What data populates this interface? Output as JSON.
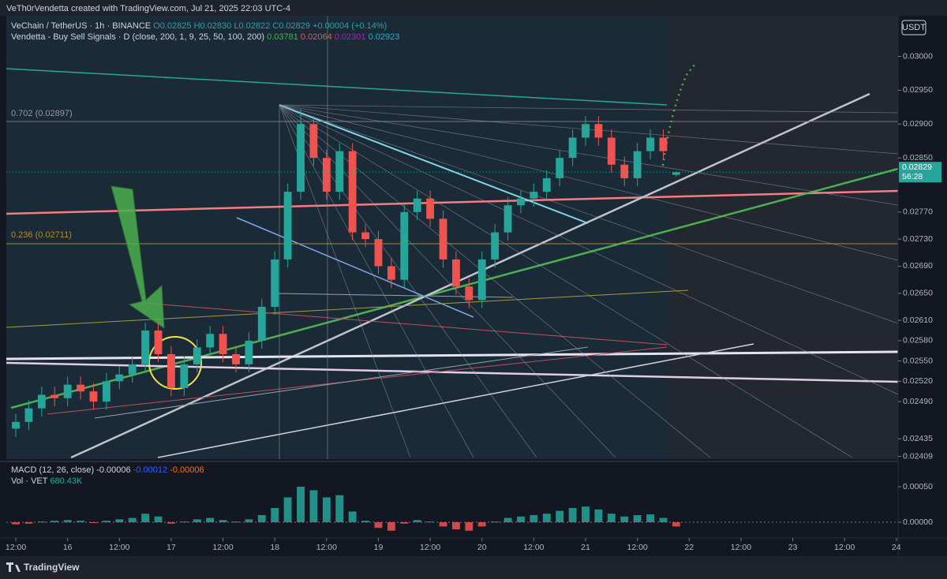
{
  "header": {
    "title": "VeTh0rVendetta created with TradingView.com, Jul 21, 2025 22:03 UTC-4"
  },
  "legend": {
    "symbol": "VeChain / TetherUS · 1h · BINANCE",
    "open": "O0.02825",
    "high": "H0.02830",
    "low": "L0.02822",
    "close": "C0.02829",
    "change": "+0.00004 (+0.14%)",
    "indicator": "Vendetta - Buy Sell Signals · D (close, 200, 1, 9, 25, 50, 100, 200)",
    "indicator_values": [
      "0.03781",
      "0.02064",
      "0.02301",
      "0.02923"
    ],
    "currency": "USDT",
    "fib_high": "0.702 (0.02897)",
    "fib_low": "0.236 (0.02711)",
    "price_tag": "0.02829",
    "countdown": "56:28",
    "macd": "MACD (12, 26, close)",
    "macd_values": [
      "-0.00006",
      "-0.00012",
      "-0.00006"
    ],
    "volume": "Vol · VET",
    "volume_value": "680.43K"
  },
  "footer": {
    "brand": "TradingView"
  },
  "chart_data": [
    {
      "type": "candlestick",
      "up_color": "#26a69a",
      "down_color": "#ef5350",
      "x": [
        0,
        3,
        6,
        9,
        12,
        15,
        18,
        21,
        24,
        27,
        30,
        33,
        36,
        39,
        42,
        45,
        48,
        51,
        54,
        57,
        60,
        63,
        66,
        69,
        72,
        75,
        78,
        81,
        84,
        87,
        90,
        93,
        96,
        99,
        102,
        105,
        108,
        111,
        114,
        117,
        120,
        123,
        126,
        129,
        132,
        135,
        138,
        141,
        144,
        147,
        150,
        153
      ],
      "open": [
        0.0245,
        0.0246,
        0.0248,
        0.025,
        0.02495,
        0.02515,
        0.02505,
        0.0249,
        0.0252,
        0.0253,
        0.02545,
        0.02595,
        0.0256,
        0.0251,
        0.02545,
        0.0257,
        0.0259,
        0.0256,
        0.02545,
        0.0258,
        0.0263,
        0.027,
        0.028,
        0.029,
        0.0285,
        0.028,
        0.0286,
        0.0274,
        0.0273,
        0.0269,
        0.0267,
        0.0277,
        0.0279,
        0.0276,
        0.027,
        0.0266,
        0.0264,
        0.027,
        0.0274,
        0.0278,
        0.0279,
        0.028,
        0.0282,
        0.0285,
        0.0288,
        0.029,
        0.0288,
        0.0284,
        0.0282,
        0.0286,
        0.0288,
        0.02825
      ],
      "high": [
        0.02472,
        0.02492,
        0.02512,
        0.02512,
        0.02527,
        0.02527,
        0.02517,
        0.02532,
        0.02542,
        0.02557,
        0.02607,
        0.02607,
        0.02572,
        0.02557,
        0.02582,
        0.02602,
        0.02602,
        0.02572,
        0.02592,
        0.02642,
        0.02712,
        0.02812,
        0.02922,
        0.02912,
        0.02862,
        0.02872,
        0.02872,
        0.02752,
        0.02742,
        0.02702,
        0.02782,
        0.02802,
        0.02802,
        0.02772,
        0.02712,
        0.02672,
        0.02712,
        0.02752,
        0.02792,
        0.02802,
        0.02812,
        0.02832,
        0.02862,
        0.02892,
        0.02912,
        0.02912,
        0.02892,
        0.02852,
        0.02872,
        0.02892,
        0.02892,
        0.0283
      ],
      "low": [
        0.02438,
        0.02448,
        0.02468,
        0.02483,
        0.02483,
        0.02493,
        0.02478,
        0.02478,
        0.02508,
        0.02518,
        0.02533,
        0.02548,
        0.02498,
        0.02498,
        0.02533,
        0.02558,
        0.02548,
        0.02533,
        0.02533,
        0.02568,
        0.02618,
        0.02688,
        0.02788,
        0.02838,
        0.02788,
        0.02788,
        0.02728,
        0.02718,
        0.02678,
        0.02658,
        0.02658,
        0.02758,
        0.02748,
        0.02688,
        0.02648,
        0.02628,
        0.02628,
        0.02688,
        0.02728,
        0.02768,
        0.02778,
        0.02788,
        0.02808,
        0.02838,
        0.02868,
        0.02868,
        0.02828,
        0.02808,
        0.02808,
        0.02848,
        0.02848,
        0.02822
      ],
      "close": [
        0.0246,
        0.0248,
        0.025,
        0.02495,
        0.02515,
        0.02505,
        0.0249,
        0.0252,
        0.0253,
        0.02545,
        0.02595,
        0.0256,
        0.0251,
        0.02545,
        0.0257,
        0.0259,
        0.0256,
        0.02545,
        0.0258,
        0.0263,
        0.027,
        0.028,
        0.029,
        0.0285,
        0.028,
        0.0286,
        0.0274,
        0.0273,
        0.0269,
        0.0267,
        0.0277,
        0.0279,
        0.0276,
        0.027,
        0.0266,
        0.0264,
        0.027,
        0.0274,
        0.0278,
        0.0279,
        0.028,
        0.0282,
        0.0285,
        0.0288,
        0.029,
        0.0288,
        0.0284,
        0.0282,
        0.0286,
        0.0288,
        0.0286,
        0.02829
      ],
      "xlim": [
        -2.2,
        204.4
      ],
      "xticks": [
        {
          "value": 0,
          "label": "12:00"
        },
        {
          "value": 12,
          "label": "16"
        },
        {
          "value": 24,
          "label": "12:00"
        },
        {
          "value": 36,
          "label": "17"
        },
        {
          "value": 48,
          "label": "12:00"
        },
        {
          "value": 60,
          "label": "18"
        },
        {
          "value": 72,
          "label": "12:00"
        },
        {
          "value": 84,
          "label": "19"
        },
        {
          "value": 96,
          "label": "12:00"
        },
        {
          "value": 108,
          "label": "20"
        },
        {
          "value": 120,
          "label": "12:00"
        },
        {
          "value": 132,
          "label": "21"
        },
        {
          "value": 144,
          "label": "12:00"
        },
        {
          "value": 156,
          "label": "22"
        },
        {
          "value": 168,
          "label": "12:00"
        },
        {
          "value": 180,
          "label": "23"
        },
        {
          "value": 192,
          "label": "12:00"
        },
        {
          "value": 204,
          "label": "24"
        }
      ],
      "ylim": [
        0.02405,
        0.0306
      ],
      "yticks": [
        {
          "value": 0.03,
          "label": "0.03000"
        },
        {
          "value": 0.0295,
          "label": "0.02950"
        },
        {
          "value": 0.029,
          "label": "0.02900"
        },
        {
          "value": 0.0285,
          "label": "0.02850"
        },
        {
          "value": 0.0277,
          "label": "0.02770"
        },
        {
          "value": 0.0273,
          "label": "0.02730"
        },
        {
          "value": 0.0269,
          "label": "0.02690"
        },
        {
          "value": 0.0265,
          "label": "0.02650"
        },
        {
          "value": 0.0261,
          "label": "0.02610"
        },
        {
          "value": 0.0258,
          "label": "0.02580"
        },
        {
          "value": 0.0255,
          "label": "0.02550"
        },
        {
          "value": 0.0252,
          "label": "0.02520"
        },
        {
          "value": 0.0249,
          "label": "0.02490"
        },
        {
          "value": 0.02435,
          "label": "0.02435"
        },
        {
          "value": 0.02409,
          "label": "0.02409"
        }
      ]
    },
    {
      "type": "bar",
      "up_color": "#26a69a",
      "down_color": "#ef5350",
      "x": [
        0,
        3,
        6,
        9,
        12,
        15,
        18,
        21,
        24,
        27,
        30,
        33,
        36,
        39,
        42,
        45,
        48,
        51,
        54,
        57,
        60,
        63,
        66,
        69,
        72,
        75,
        78,
        81,
        84,
        87,
        90,
        93,
        96,
        99,
        102,
        105,
        108,
        111,
        114,
        117,
        120,
        123,
        126,
        129,
        132,
        135,
        138,
        141,
        144,
        147,
        150,
        153
      ],
      "values": [
        -3e-05,
        -2e-05,
        1e-05,
        2e-05,
        3e-05,
        2e-05,
        -1e-05,
        2e-05,
        4e-05,
        6e-05,
        0.00012,
        8e-05,
        -2e-05,
        1e-05,
        4e-05,
        6e-05,
        3e-05,
        1e-05,
        4e-05,
        0.0001,
        0.0002,
        0.00035,
        0.0005,
        0.00045,
        0.00035,
        0.00038,
        0.00015,
        2e-05,
        -8e-05,
        -0.00012,
        -2e-05,
        3e-05,
        1e-05,
        -6e-05,
        -0.0001,
        -0.00012,
        -6e-05,
        1e-05,
        6e-05,
        8e-05,
        0.0001,
        0.00012,
        0.00016,
        0.0002,
        0.00022,
        0.00018,
        0.00012,
        8e-05,
        0.0001,
        0.00011,
        6e-05,
        -6e-05
      ],
      "xlim": [
        -2.2,
        204.4
      ],
      "ylim": [
        -0.0002,
        0.0008
      ],
      "yticks": [
        {
          "value": 0.0005,
          "label": "0.00050"
        },
        {
          "value": 0,
          "label": "0.00000"
        }
      ]
    }
  ]
}
